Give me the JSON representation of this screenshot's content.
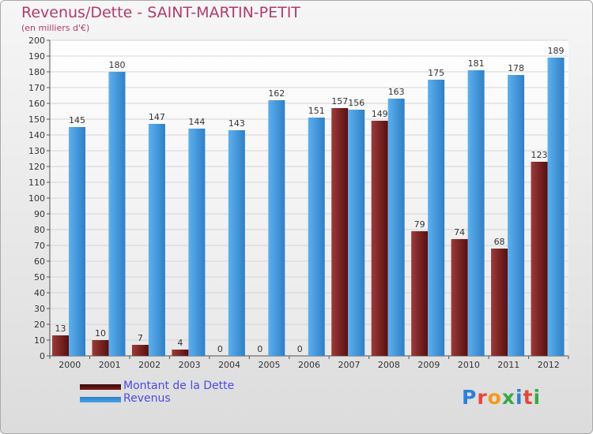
{
  "chart_title": "Revenus/Dette - SAINT-MARTIN-PETIT",
  "chart_subtitle": "(en milliers d'€)",
  "brand": {
    "text": "Proxiti",
    "letters": [
      "P",
      "r",
      "o",
      "x",
      "i",
      "t",
      "i"
    ],
    "colors": [
      "#2f7fd6",
      "#e8453c",
      "#f29a1f",
      "#3aa845",
      "#2f7fd6",
      "#e8453c",
      "#3aa845"
    ]
  },
  "colors": {
    "dette": "#7a1f1f",
    "revenus": "#4aa3e8",
    "title": "#b13a6e",
    "legend_text": "#4a4ae8"
  },
  "chart_data": {
    "type": "bar",
    "title": "Revenus/Dette - SAINT-MARTIN-PETIT",
    "subtitle": "(en milliers d'€)",
    "categories": [
      "2000",
      "2001",
      "2002",
      "2003",
      "2004",
      "2005",
      "2006",
      "2007",
      "2008",
      "2009",
      "2010",
      "2011",
      "2012"
    ],
    "series": [
      {
        "name": "Montant de la Dette",
        "color": "#7a1f1f",
        "values": [
          13,
          10,
          7,
          4,
          0,
          0,
          0,
          157,
          149,
          79,
          74,
          68,
          123
        ]
      },
      {
        "name": "Revenus",
        "color": "#4aa3e8",
        "values": [
          145,
          180,
          147,
          144,
          143,
          162,
          151,
          156,
          163,
          175,
          181,
          178,
          189
        ]
      }
    ],
    "ylim": [
      0,
      200
    ],
    "ytick_step": 10,
    "grid": true,
    "legend": "bottom-left"
  }
}
